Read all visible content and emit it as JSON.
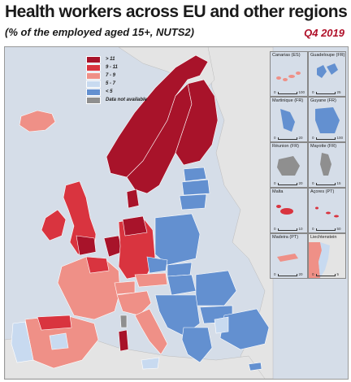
{
  "title": "Health workers across EU and other regions",
  "subtitle": "(% of the employed aged 15+, NUTS2)",
  "period": "Q4 2019",
  "legend": [
    {
      "label": "> 11",
      "color": "#a8132a"
    },
    {
      "label": "9 - 11",
      "color": "#d9343f"
    },
    {
      "label": "7 - 9",
      "color": "#ef9087"
    },
    {
      "label": "5 - 7",
      "color": "#c8daf0"
    },
    {
      "label": "< 5",
      "color": "#6390d0"
    },
    {
      "label": "Data not available",
      "color": "#8f8f8f"
    }
  ],
  "colors": {
    "sea": "#d5dde8",
    "non_eu_land": "#e4e4e4",
    "border": "#ffffff"
  },
  "insets": {
    "canarias": {
      "label": "Canarias (ES)",
      "scale_max": "100"
    },
    "guadeloupe": {
      "label": "Guadeloupe (FR)",
      "scale_max": "25"
    },
    "martinique": {
      "label": "Martinique (FR)",
      "scale_max": "20"
    },
    "guyane": {
      "label": "Guyane (FR)",
      "scale_max": "100"
    },
    "reunion": {
      "label": "Réunion (FR)",
      "scale_max": "20"
    },
    "mayotte": {
      "label": "Mayotte (FR)",
      "scale_max": "15"
    },
    "malta": {
      "label": "Malta",
      "scale_max": "10"
    },
    "acores": {
      "label": "Açores (PT)",
      "scale_max": "50"
    },
    "madeira": {
      "label": "Madeira (PT)",
      "scale_max": "20"
    },
    "liechtenstein": {
      "label": "Liechtenstein",
      "scale_max": "5"
    }
  },
  "scale_zero": "0"
}
